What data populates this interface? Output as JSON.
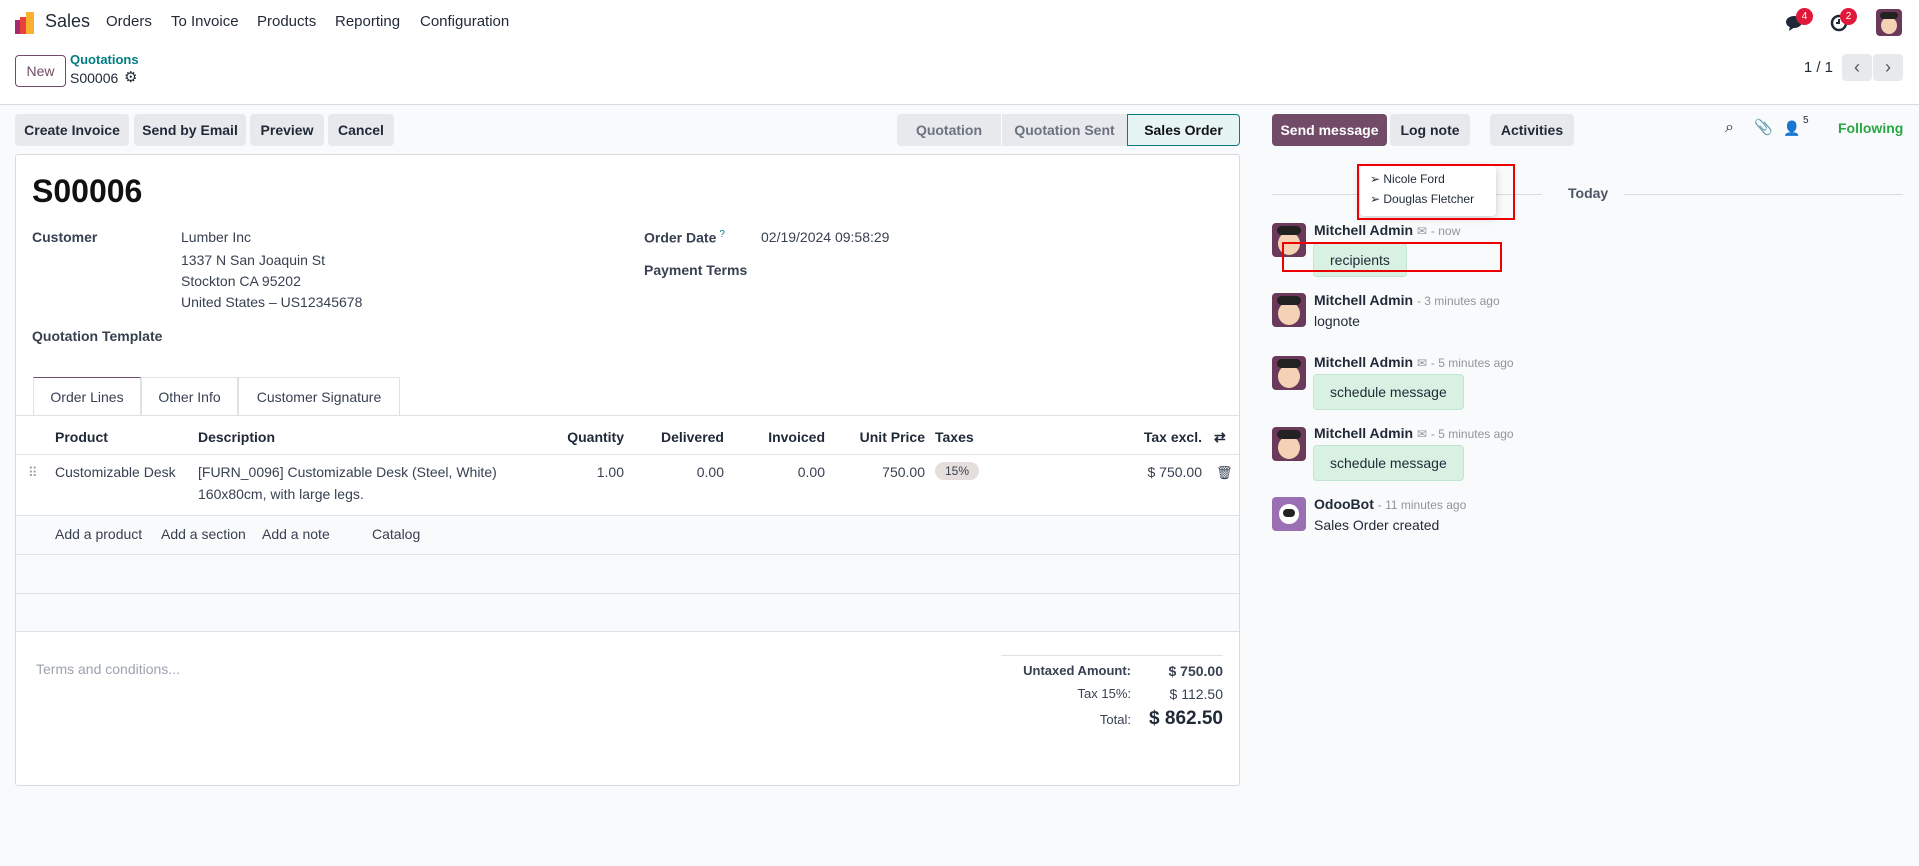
{
  "navbar": {
    "app": "Sales",
    "menu": [
      "Orders",
      "To Invoice",
      "Products",
      "Reporting",
      "Configuration"
    ],
    "messages_badge": "4",
    "activities_badge": "2"
  },
  "control_panel": {
    "new_label": "New",
    "breadcrumb_parent": "Quotations",
    "record_name": "S00006",
    "pager": "1 / 1"
  },
  "actions": {
    "create_invoice": "Create Invoice",
    "send_email": "Send by Email",
    "preview": "Preview",
    "cancel": "Cancel"
  },
  "statusbar": {
    "stages": [
      "Quotation",
      "Quotation Sent",
      "Sales Order"
    ],
    "current": "Sales Order"
  },
  "form": {
    "title": "S00006",
    "customer_label": "Customer",
    "customer_name": "Lumber Inc",
    "address": [
      "1337 N San Joaquin St",
      "Stockton CA 95202",
      "United States – US12345678"
    ],
    "quotation_template_label": "Quotation Template",
    "order_date_label": "Order Date",
    "order_date_help": "?",
    "order_date": "02/19/2024 09:58:29",
    "payment_terms_label": "Payment Terms",
    "tabs": [
      "Order Lines",
      "Other Info",
      "Customer Signature"
    ],
    "columns": {
      "product": "Product",
      "description": "Description",
      "quantity": "Quantity",
      "delivered": "Delivered",
      "invoiced": "Invoiced",
      "unit_price": "Unit Price",
      "taxes": "Taxes",
      "tax_excl": "Tax excl."
    },
    "lines": [
      {
        "product": "Customizable Desk",
        "description": [
          "[FURN_0096] Customizable Desk (Steel, White)",
          "160x80cm, with large legs."
        ],
        "quantity": "1.00",
        "delivered": "0.00",
        "invoiced": "0.00",
        "unit_price": "750.00",
        "tax": "15%",
        "subtotal": "$ 750.00"
      }
    ],
    "add_links": {
      "product": "Add a product",
      "section": "Add a section",
      "note": "Add a note",
      "catalog": "Catalog"
    },
    "terms_placeholder": "Terms and conditions...",
    "totals": {
      "untaxed_label": "Untaxed Amount:",
      "untaxed": "$ 750.00",
      "tax_label": "Tax 15%:",
      "tax": "$ 112.50",
      "total_label": "Total:",
      "total": "$ 862.50"
    }
  },
  "chatter": {
    "send_message": "Send message",
    "log_note": "Log note",
    "activities": "Activities",
    "followers_count": "5",
    "following": "Following",
    "date_divider": "Today",
    "recipients_popover": [
      "Nicole Ford",
      "Douglas Fletcher"
    ],
    "messages": [
      {
        "author": "Mitchell Admin",
        "time": "- now",
        "body": "recipients",
        "email": true
      },
      {
        "author": "Mitchell Admin",
        "time": "- 3 minutes ago",
        "body": "lognote",
        "email": false
      },
      {
        "author": "Mitchell Admin",
        "time": "- 5 minutes ago",
        "body": "schedule message",
        "email": true
      },
      {
        "author": "Mitchell Admin",
        "time": "- 5 minutes ago",
        "body": "schedule message",
        "email": true
      },
      {
        "author": "OdooBot",
        "time": "- 11 minutes ago",
        "body": "Sales Order created",
        "email": false
      }
    ]
  },
  "colors": {
    "brand": "#714b67",
    "link": "#017e84",
    "following": "#28a745",
    "badge": "#e0193a"
  }
}
